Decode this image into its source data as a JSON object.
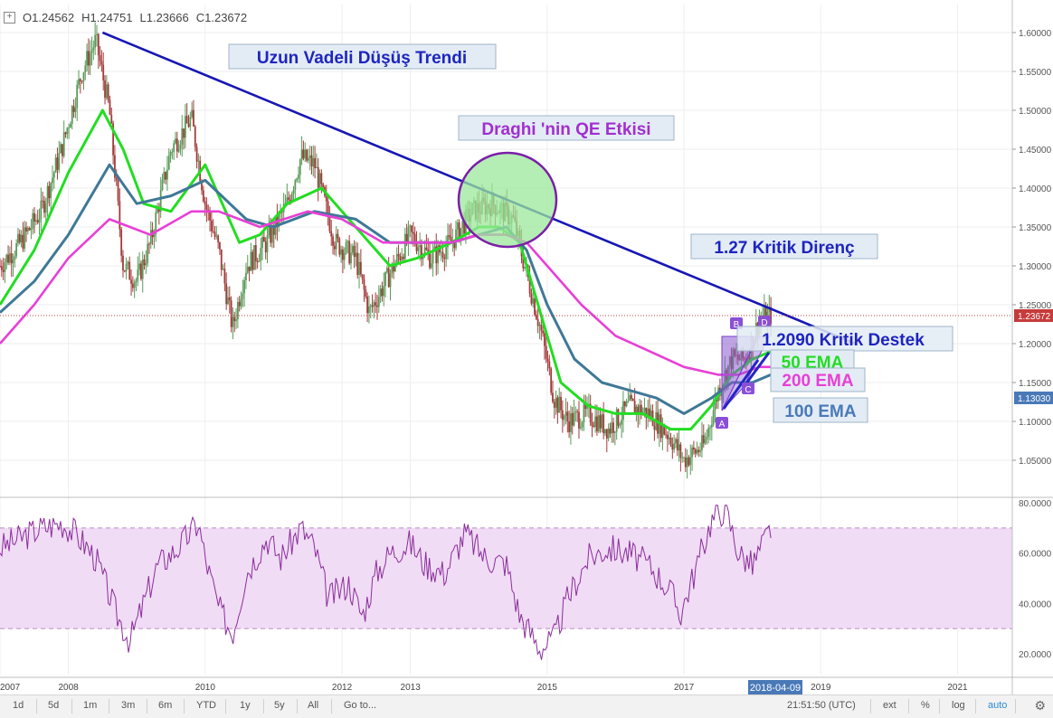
{
  "ohlc": {
    "o": "O1.24562",
    "h": "H1.24751",
    "l": "L1.23666",
    "c": "C1.23672"
  },
  "annotations": {
    "trend_label": "Uzun Vadeli Düşüş Trendi",
    "qe_label": "Draghi 'nin QE Etkisi",
    "resistance_label": "1.27 Kritik Direnç",
    "support_label": "1.2090 Kritik Destek",
    "ema50_label": "50 EMA",
    "ema200_label": "200 EMA",
    "ema100_label": "100 EMA",
    "pattern_points": [
      "A",
      "B",
      "C",
      "D"
    ]
  },
  "price_badges": {
    "last": "1.23672",
    "ema": "1.13030"
  },
  "date_badge": "2018-04-09",
  "toolbar": {
    "ranges": [
      "1d",
      "5d",
      "1m",
      "3m",
      "6m",
      "YTD",
      "1y",
      "5y",
      "All"
    ],
    "goto": "Go to...",
    "time": "21:51:50 (UTC)",
    "ext": "ext",
    "percent": "%",
    "log": "log",
    "auto": "auto"
  },
  "colors": {
    "ema50": "#22dd22",
    "ema100": "#3f7896",
    "ema200": "#e83fd6",
    "trend": "#1717b5",
    "rsi": "#8b2d9b",
    "candle_up": "#5a9a5a",
    "candle_down": "#a33a3a"
  },
  "chart_data": [
    {
      "type": "line",
      "title": "",
      "xlabel": "",
      "ylabel": "",
      "xlim": [
        2007.0,
        2021.8
      ],
      "ylim": [
        1.0,
        1.63
      ],
      "x_ticks": [
        "2007",
        "2008",
        "2010",
        "2012",
        "2013",
        "2015",
        "2017",
        "2019",
        "2021"
      ],
      "x_tick_years": [
        2007.0,
        2008.0,
        2010.0,
        2012.0,
        2013.0,
        2015.0,
        2017.0,
        2019.0,
        2021.0
      ],
      "y_ticks": [
        "1.05000",
        "1.10000",
        "1.15000",
        "1.20000",
        "1.25000",
        "1.30000",
        "1.35000",
        "1.40000",
        "1.45000",
        "1.50000",
        "1.55000",
        "1.60000"
      ],
      "y_tick_values": [
        1.05,
        1.1,
        1.15,
        1.2,
        1.25,
        1.3,
        1.35,
        1.4,
        1.45,
        1.5,
        1.55,
        1.6
      ],
      "series": [
        {
          "name": "price",
          "x": [
            2007.0,
            2007.3,
            2007.6,
            2007.9,
            2008.2,
            2008.4,
            2008.6,
            2008.8,
            2009.0,
            2009.2,
            2009.5,
            2009.8,
            2010.0,
            2010.2,
            2010.4,
            2010.6,
            2010.9,
            2011.2,
            2011.4,
            2011.6,
            2011.9,
            2012.2,
            2012.4,
            2012.7,
            2013.0,
            2013.3,
            2013.6,
            2013.9,
            2014.2,
            2014.5,
            2014.7,
            2014.9,
            2015.1,
            2015.3,
            2015.6,
            2015.9,
            2016.2,
            2016.5,
            2016.8,
            2017.0,
            2017.3,
            2017.5,
            2017.7,
            2017.9,
            2018.1,
            2018.27
          ],
          "y": [
            1.3,
            1.33,
            1.37,
            1.45,
            1.55,
            1.59,
            1.5,
            1.3,
            1.28,
            1.33,
            1.45,
            1.49,
            1.38,
            1.32,
            1.22,
            1.3,
            1.33,
            1.38,
            1.44,
            1.43,
            1.33,
            1.31,
            1.24,
            1.29,
            1.34,
            1.31,
            1.33,
            1.37,
            1.38,
            1.36,
            1.29,
            1.22,
            1.13,
            1.1,
            1.11,
            1.09,
            1.12,
            1.11,
            1.08,
            1.05,
            1.07,
            1.14,
            1.18,
            1.18,
            1.23,
            1.237
          ]
        },
        {
          "name": "50 EMA",
          "x": [
            2007.0,
            2007.5,
            2008.0,
            2008.5,
            2008.8,
            2009.1,
            2009.5,
            2010.0,
            2010.5,
            2010.8,
            2011.2,
            2011.7,
            2012.2,
            2012.7,
            2013.1,
            2013.6,
            2014.0,
            2014.3,
            2014.6,
            2014.9,
            2015.2,
            2015.6,
            2016.0,
            2016.4,
            2016.8,
            2017.1,
            2017.4,
            2017.7,
            2018.0,
            2018.27
          ],
          "y": [
            1.25,
            1.32,
            1.42,
            1.5,
            1.45,
            1.38,
            1.37,
            1.43,
            1.33,
            1.34,
            1.38,
            1.4,
            1.35,
            1.3,
            1.31,
            1.33,
            1.35,
            1.35,
            1.33,
            1.24,
            1.15,
            1.12,
            1.11,
            1.11,
            1.09,
            1.09,
            1.12,
            1.16,
            1.18,
            1.19
          ]
        },
        {
          "name": "100 EMA",
          "x": [
            2007.0,
            2007.5,
            2008.0,
            2008.6,
            2009.0,
            2009.5,
            2010.0,
            2010.6,
            2011.0,
            2011.6,
            2012.2,
            2012.7,
            2013.1,
            2013.6,
            2014.0,
            2014.4,
            2014.7,
            2015.0,
            2015.4,
            2015.8,
            2016.2,
            2016.6,
            2017.0,
            2017.4,
            2017.7,
            2018.0,
            2018.27
          ],
          "y": [
            1.24,
            1.28,
            1.34,
            1.43,
            1.38,
            1.39,
            1.41,
            1.36,
            1.35,
            1.37,
            1.36,
            1.33,
            1.33,
            1.33,
            1.34,
            1.35,
            1.32,
            1.25,
            1.18,
            1.15,
            1.14,
            1.13,
            1.11,
            1.13,
            1.15,
            1.15,
            1.16
          ]
        },
        {
          "name": "200 EMA",
          "x": [
            2007.0,
            2007.5,
            2008.0,
            2008.6,
            2009.2,
            2009.8,
            2010.2,
            2010.8,
            2011.5,
            2012.0,
            2012.6,
            2013.0,
            2013.6,
            2014.0,
            2014.4,
            2014.7,
            2015.0,
            2015.5,
            2016.0,
            2016.5,
            2017.0,
            2017.5,
            2017.8,
            2018.1,
            2018.27
          ],
          "y": [
            1.2,
            1.25,
            1.31,
            1.36,
            1.34,
            1.37,
            1.37,
            1.35,
            1.37,
            1.36,
            1.33,
            1.33,
            1.33,
            1.34,
            1.34,
            1.33,
            1.3,
            1.25,
            1.21,
            1.19,
            1.17,
            1.16,
            1.16,
            1.17,
            1.17
          ]
        },
        {
          "name": "trend",
          "x": [
            2008.5,
            2019.5
          ],
          "y": [
            1.6,
            1.2
          ]
        }
      ]
    },
    {
      "type": "line",
      "title": "",
      "ylim": [
        12,
        82
      ],
      "band": [
        30,
        70
      ],
      "y_ticks": [
        "20.0000",
        "40.0000",
        "60.0000",
        "80.0000"
      ],
      "y_tick_values": [
        20,
        40,
        60,
        80
      ],
      "series": [
        {
          "name": "RSI",
          "x": [
            2007.0,
            2007.3,
            2007.6,
            2007.9,
            2008.1,
            2008.4,
            2008.7,
            2008.9,
            2009.1,
            2009.3,
            2009.6,
            2009.9,
            2010.0,
            2010.2,
            2010.4,
            2010.6,
            2010.9,
            2011.1,
            2011.4,
            2011.6,
            2011.8,
            2012.1,
            2012.3,
            2012.5,
            2012.7,
            2013.0,
            2013.2,
            2013.5,
            2013.8,
            2014.1,
            2014.4,
            2014.6,
            2014.9,
            2015.1,
            2015.3,
            2015.6,
            2015.9,
            2016.2,
            2016.5,
            2016.8,
            2016.95,
            2017.2,
            2017.4,
            2017.6,
            2017.8,
            2018.0,
            2018.27
          ],
          "y": [
            62,
            66,
            70,
            72,
            68,
            58,
            36,
            25,
            40,
            55,
            62,
            72,
            58,
            38,
            28,
            52,
            66,
            58,
            70,
            62,
            42,
            48,
            35,
            52,
            60,
            64,
            56,
            52,
            68,
            58,
            56,
            35,
            22,
            26,
            42,
            58,
            62,
            60,
            55,
            45,
            36,
            56,
            73,
            78,
            60,
            55,
            70
          ]
        }
      ]
    }
  ]
}
